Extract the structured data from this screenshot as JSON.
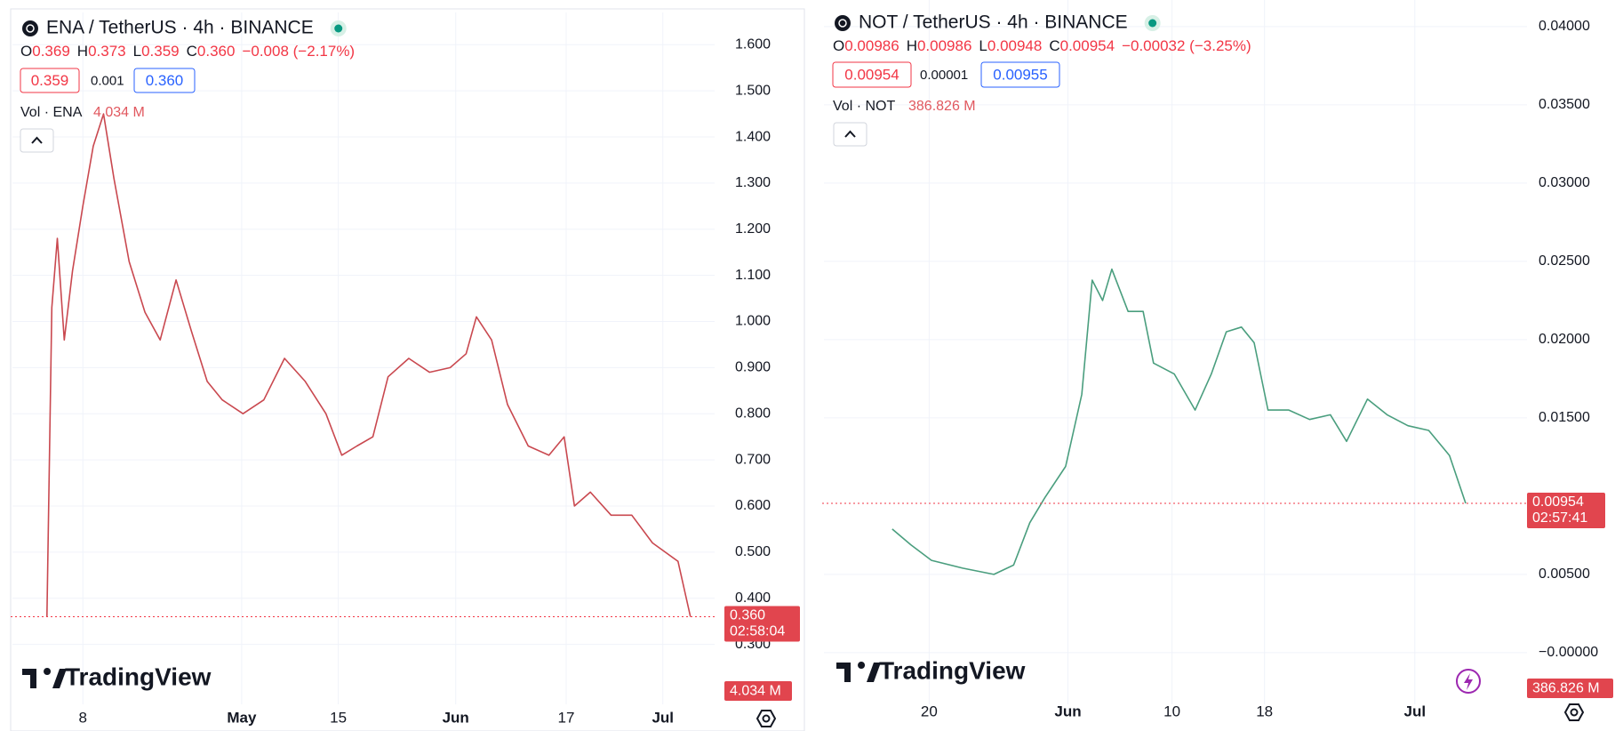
{
  "chart_data": [
    {
      "type": "line",
      "title": "ENA / TetherUS · 4h · BINANCE",
      "ohlc": [
        {
          "key": "O",
          "value": "0.369"
        },
        {
          "key": "H",
          "value": "0.373"
        },
        {
          "key": "L",
          "value": "0.359"
        },
        {
          "key": "C",
          "value": "0.360"
        }
      ],
      "change": "−0.008 (−2.17%)",
      "bid": "0.359",
      "spread": "0.001",
      "ask": "0.360",
      "volume_label": "Vol · ENA",
      "volume": "4.034 M",
      "last_price": {
        "value": 0.36,
        "label": "0.360"
      },
      "countdown": "02:58:04",
      "volume_tag": "4.034 M",
      "watermark": "TradingView",
      "color": "#c9484f",
      "x": [
        1.8,
        2.5,
        3.3,
        4.3,
        5.5,
        7.0,
        8.5,
        10.0,
        11.5,
        13.7,
        16.0,
        18.2,
        20.5,
        22.7,
        25.0,
        27.2,
        30.2,
        33.2,
        36.2,
        39.2,
        42.2,
        44.5,
        46.7,
        49.0,
        51.2,
        54.2,
        57.2,
        60.2,
        62.5,
        64.0,
        66.2,
        68.5,
        71.5,
        74.5,
        76.7,
        78.2,
        80.5,
        83.5,
        86.5,
        89.5,
        93.2,
        95.0
      ],
      "values": [
        0.36,
        1.03,
        1.18,
        0.96,
        1.11,
        1.25,
        1.38,
        1.45,
        1.31,
        1.13,
        1.02,
        0.96,
        1.09,
        0.98,
        0.87,
        0.83,
        0.8,
        0.83,
        0.92,
        0.87,
        0.8,
        0.71,
        0.73,
        0.75,
        0.88,
        0.92,
        0.89,
        0.9,
        0.93,
        1.01,
        0.96,
        0.82,
        0.73,
        0.71,
        0.75,
        0.6,
        0.63,
        0.58,
        0.58,
        0.52,
        0.48,
        0.36
      ],
      "xlim": [
        -3.2,
        98.5
      ],
      "xticks": [
        {
          "value": 7,
          "label": "8"
        },
        {
          "value": 30,
          "label": "May"
        },
        {
          "value": 44,
          "label": "15"
        },
        {
          "value": 61,
          "label": "Jun"
        },
        {
          "value": 77,
          "label": "17"
        },
        {
          "value": 91,
          "label": "Jul"
        }
      ],
      "ylim": [
        0.17,
        1.67
      ],
      "yticks": [
        {
          "value": 0.3,
          "label": "0.300"
        },
        {
          "value": 0.4,
          "label": "0.400"
        },
        {
          "value": 0.5,
          "label": "0.500"
        },
        {
          "value": 0.6,
          "label": "0.600"
        },
        {
          "value": 0.7,
          "label": "0.700"
        },
        {
          "value": 0.8,
          "label": "0.800"
        },
        {
          "value": 0.9,
          "label": "0.900"
        },
        {
          "value": 1.0,
          "label": "1.000"
        },
        {
          "value": 1.1,
          "label": "1.100"
        },
        {
          "value": 1.2,
          "label": "1.200"
        },
        {
          "value": 1.3,
          "label": "1.300"
        },
        {
          "value": 1.4,
          "label": "1.400"
        },
        {
          "value": 1.5,
          "label": "1.500"
        },
        {
          "value": 1.6,
          "label": "1.600"
        }
      ],
      "grid": true
    },
    {
      "type": "line",
      "title": "NOT / TetherUS · 4h · BINANCE",
      "ohlc": [
        {
          "key": "O",
          "value": "0.00986"
        },
        {
          "key": "H",
          "value": "0.00986"
        },
        {
          "key": "L",
          "value": "0.00948"
        },
        {
          "key": "C",
          "value": "0.00954"
        }
      ],
      "change": "−0.00032 (−3.25%)",
      "bid": "0.00954",
      "spread": "0.00001",
      "ask": "0.00955",
      "volume_label": "Vol · NOT",
      "volume": "386.826 M",
      "last_price": {
        "value": 0.00954,
        "label": "0.00954"
      },
      "countdown": "02:57:41",
      "volume_tag": "386.826 M",
      "watermark": "TradingView",
      "color": "#4a9e7e",
      "x": [
        15.8,
        17.4,
        19.2,
        21.9,
        24.6,
        26.3,
        27.7,
        29.0,
        30.8,
        32.2,
        33.1,
        34.0,
        34.8,
        36.2,
        37.5,
        38.4,
        40.2,
        42.0,
        43.4,
        44.7,
        46.0,
        47.1,
        48.3,
        50.1,
        51.9,
        53.7,
        55.1,
        56.9,
        58.6,
        60.4,
        62.2,
        64.0,
        65.4
      ],
      "values": [
        0.0079,
        0.0069,
        0.0059,
        0.0054,
        0.005,
        0.0056,
        0.0083,
        0.0099,
        0.0119,
        0.0165,
        0.0238,
        0.0225,
        0.0245,
        0.0218,
        0.0218,
        0.0185,
        0.0178,
        0.0155,
        0.0178,
        0.0205,
        0.0208,
        0.0198,
        0.0155,
        0.0155,
        0.0149,
        0.0152,
        0.0135,
        0.0162,
        0.0152,
        0.0145,
        0.0142,
        0.0126,
        0.00954
      ],
      "xlim": [
        9.9,
        70.7
      ],
      "xticks": [
        {
          "value": 19,
          "label": "20"
        },
        {
          "value": 31,
          "label": "Jun"
        },
        {
          "value": 40,
          "label": "10"
        },
        {
          "value": 48,
          "label": "18"
        },
        {
          "value": 61,
          "label": "Jul"
        }
      ],
      "ylim": [
        -0.0033,
        0.0417
      ],
      "yticks": [
        {
          "value": 0,
          "label": "−0.00000"
        },
        {
          "value": 0.005,
          "label": "0.00500"
        },
        {
          "value": 0.015,
          "label": "0.01500"
        },
        {
          "value": 0.02,
          "label": "0.02000"
        },
        {
          "value": 0.025,
          "label": "0.02500"
        },
        {
          "value": 0.03,
          "label": "0.03000"
        },
        {
          "value": 0.035,
          "label": "0.03500"
        },
        {
          "value": 0.04,
          "label": "0.04000"
        }
      ],
      "grid": true
    }
  ]
}
